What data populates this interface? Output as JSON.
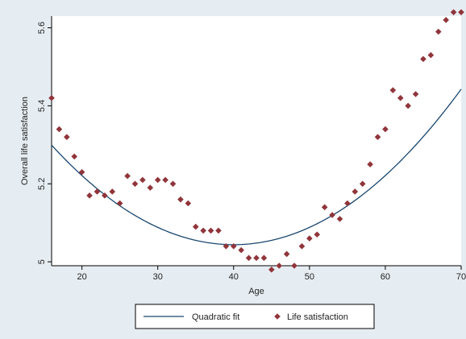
{
  "chart_data": {
    "type": "scatter",
    "title": "",
    "xlabel": "Age",
    "ylabel": "Overall life satisfaction",
    "xlim": [
      16,
      70
    ],
    "ylim": [
      4.99,
      5.63
    ],
    "xticks": [
      20,
      30,
      40,
      50,
      60,
      70
    ],
    "xtick_labels": [
      "20",
      "30",
      "40",
      "50",
      "60",
      "70"
    ],
    "yticks": [
      5,
      5.2,
      5.4,
      5.6
    ],
    "ytick_labels": [
      "5",
      "5.2",
      "5.4",
      "5.6"
    ],
    "grid": false,
    "legend_position": "bottom",
    "series": [
      {
        "name": "Quadratic fit",
        "kind": "line",
        "color": "#1a476f",
        "quadratic": {
          "vertex_x": 40,
          "vertex_y": 5.044,
          "a": 0.000443
        }
      },
      {
        "name": "Life satisfaction",
        "kind": "scatter",
        "color": "#90353b",
        "x": [
          16,
          17,
          18,
          19,
          20,
          21,
          22,
          23,
          24,
          25,
          26,
          27,
          28,
          29,
          30,
          31,
          32,
          33,
          34,
          35,
          36,
          37,
          38,
          39,
          40,
          41,
          42,
          43,
          44,
          45,
          46,
          47,
          48,
          49,
          50,
          51,
          52,
          53,
          54,
          55,
          56,
          57,
          58,
          59,
          60,
          61,
          62,
          63,
          64,
          65,
          66,
          67,
          68,
          69,
          70
        ],
        "y": [
          5.42,
          5.34,
          5.32,
          5.27,
          5.23,
          5.17,
          5.18,
          5.17,
          5.18,
          5.15,
          5.22,
          5.2,
          5.21,
          5.19,
          5.21,
          5.21,
          5.2,
          5.16,
          5.15,
          5.09,
          5.08,
          5.08,
          5.08,
          5.04,
          5.04,
          5.03,
          5.01,
          5.01,
          5.01,
          4.98,
          4.99,
          5.02,
          4.99,
          5.04,
          5.06,
          5.07,
          5.14,
          5.12,
          5.11,
          5.15,
          5.18,
          5.2,
          5.25,
          5.32,
          5.34,
          5.44,
          5.42,
          5.4,
          5.43,
          5.52,
          5.53,
          5.59,
          5.62,
          5.64,
          5.64
        ]
      }
    ]
  }
}
